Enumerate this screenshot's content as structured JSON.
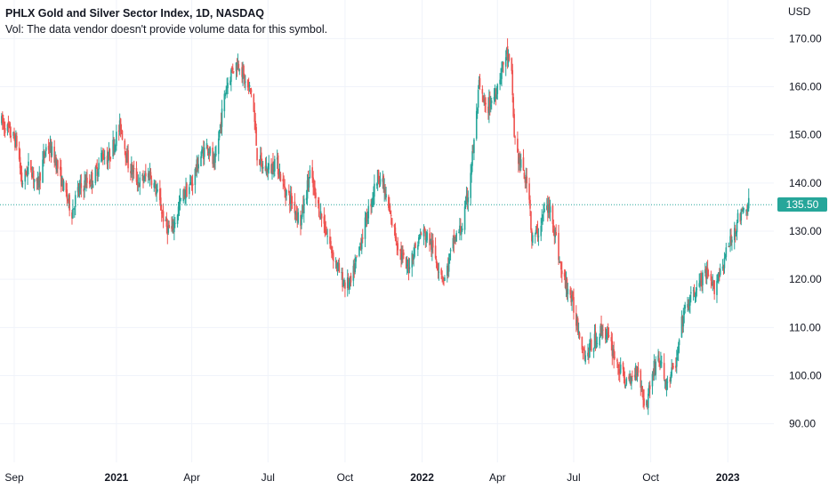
{
  "header": {
    "title": "PHLX Gold and Silver Sector Index, 1D, NASDAQ",
    "volume_note": "Vol: The data vendor doesn't provide volume data for this symbol."
  },
  "currency": "USD",
  "last_price_label": "135.50",
  "colors": {
    "up": "#26a69a",
    "down": "#ef5350",
    "grid": "#f0f3fa",
    "price_line": "#26a69a"
  },
  "chart_data": {
    "type": "candlestick",
    "title": "PHLX Gold and Silver Sector Index, 1D, NASDAQ",
    "ylim": [
      82,
      178
    ],
    "y_ticks": [
      90,
      100,
      110,
      120,
      130,
      140,
      150,
      160,
      170
    ],
    "y_tick_labels": [
      "90.00",
      "100.00",
      "110.00",
      "120.00",
      "130.00",
      "140.00",
      "150.00",
      "160.00",
      "170.00"
    ],
    "x_ticks": [
      {
        "label": "Sep",
        "date": "2020-09-01",
        "major": false
      },
      {
        "label": "2021",
        "date": "2021-01-01",
        "major": true
      },
      {
        "label": "Apr",
        "date": "2021-04-01",
        "major": false
      },
      {
        "label": "Jul",
        "date": "2021-07-01",
        "major": false
      },
      {
        "label": "Oct",
        "date": "2021-10-01",
        "major": false
      },
      {
        "label": "2022",
        "date": "2022-01-01",
        "major": true
      },
      {
        "label": "Apr",
        "date": "2022-04-01",
        "major": false
      },
      {
        "label": "Jul",
        "date": "2022-07-01",
        "major": false
      },
      {
        "label": "Oct",
        "date": "2022-10-01",
        "major": false
      },
      {
        "label": "2023",
        "date": "2023-01-01",
        "major": true
      }
    ],
    "x_range": [
      "2020-08-15",
      "2023-02-25"
    ],
    "last_price": 135.5,
    "price_path": [
      [
        "2020-08-15",
        153
      ],
      [
        "2020-08-25",
        151
      ],
      [
        "2020-09-05",
        148
      ],
      [
        "2020-09-10",
        140
      ],
      [
        "2020-09-20",
        144
      ],
      [
        "2020-09-28",
        139
      ],
      [
        "2020-10-10",
        148
      ],
      [
        "2020-10-20",
        145
      ],
      [
        "2020-10-30",
        139
      ],
      [
        "2020-11-09",
        134
      ],
      [
        "2020-11-15",
        138
      ],
      [
        "2020-11-25",
        140
      ],
      [
        "2020-12-05",
        141
      ],
      [
        "2020-12-15",
        146
      ],
      [
        "2020-12-22",
        145
      ],
      [
        "2021-01-06",
        152
      ],
      [
        "2021-01-15",
        144
      ],
      [
        "2021-01-28",
        140
      ],
      [
        "2021-02-10",
        142
      ],
      [
        "2021-02-20",
        137
      ],
      [
        "2021-03-01",
        131
      ],
      [
        "2021-03-08",
        130
      ],
      [
        "2021-03-20",
        137
      ],
      [
        "2021-04-01",
        140
      ],
      [
        "2021-04-10",
        145
      ],
      [
        "2021-04-20",
        148
      ],
      [
        "2021-04-28",
        143
      ],
      [
        "2021-05-05",
        152
      ],
      [
        "2021-05-12",
        160
      ],
      [
        "2021-05-20",
        164
      ],
      [
        "2021-05-28",
        165
      ],
      [
        "2021-06-05",
        160
      ],
      [
        "2021-06-12",
        159
      ],
      [
        "2021-06-18",
        146
      ],
      [
        "2021-06-25",
        143
      ],
      [
        "2021-07-05",
        143
      ],
      [
        "2021-07-10",
        145
      ],
      [
        "2021-07-20",
        139
      ],
      [
        "2021-07-30",
        136
      ],
      [
        "2021-08-09",
        132
      ],
      [
        "2021-08-20",
        142
      ],
      [
        "2021-08-28",
        136
      ],
      [
        "2021-09-05",
        132
      ],
      [
        "2021-09-15",
        126
      ],
      [
        "2021-09-25",
        121
      ],
      [
        "2021-09-30",
        119
      ],
      [
        "2021-10-08",
        119
      ],
      [
        "2021-10-20",
        128
      ],
      [
        "2021-10-30",
        135
      ],
      [
        "2021-11-10",
        142
      ],
      [
        "2021-11-16",
        139
      ],
      [
        "2021-11-24",
        133
      ],
      [
        "2021-12-05",
        126
      ],
      [
        "2021-12-14",
        122
      ],
      [
        "2021-12-20",
        125
      ],
      [
        "2022-01-01",
        130
      ],
      [
        "2022-01-10",
        128
      ],
      [
        "2022-01-20",
        123
      ],
      [
        "2022-01-28",
        120
      ],
      [
        "2022-02-08",
        128
      ],
      [
        "2022-02-18",
        131
      ],
      [
        "2022-02-25",
        138
      ],
      [
        "2022-03-05",
        150
      ],
      [
        "2022-03-10",
        160
      ],
      [
        "2022-03-18",
        155
      ],
      [
        "2022-03-28",
        158
      ],
      [
        "2022-04-05",
        163
      ],
      [
        "2022-04-12",
        167
      ],
      [
        "2022-04-18",
        162
      ],
      [
        "2022-04-21",
        150
      ],
      [
        "2022-04-26",
        145
      ],
      [
        "2022-05-02",
        142
      ],
      [
        "2022-05-09",
        138
      ],
      [
        "2022-05-12",
        128
      ],
      [
        "2022-05-20",
        130
      ],
      [
        "2022-05-28",
        135
      ],
      [
        "2022-06-05",
        134
      ],
      [
        "2022-06-12",
        126
      ],
      [
        "2022-06-18",
        120
      ],
      [
        "2022-06-25",
        118
      ],
      [
        "2022-07-05",
        111
      ],
      [
        "2022-07-15",
        104
      ],
      [
        "2022-07-25",
        107
      ],
      [
        "2022-08-05",
        110
      ],
      [
        "2022-08-15",
        106
      ],
      [
        "2022-08-25",
        101
      ],
      [
        "2022-09-05",
        98
      ],
      [
        "2022-09-15",
        102
      ],
      [
        "2022-09-25",
        93
      ],
      [
        "2022-10-02",
        100
      ],
      [
        "2022-10-10",
        104
      ],
      [
        "2022-10-20",
        98
      ],
      [
        "2022-11-01",
        103
      ],
      [
        "2022-11-08",
        112
      ],
      [
        "2022-11-15",
        115
      ],
      [
        "2022-11-25",
        118
      ],
      [
        "2022-12-05",
        121
      ],
      [
        "2022-12-15",
        118
      ],
      [
        "2022-12-25",
        123
      ],
      [
        "2023-01-05",
        128
      ],
      [
        "2023-01-12",
        132
      ],
      [
        "2023-01-20",
        134
      ],
      [
        "2023-01-26",
        135.5
      ]
    ]
  }
}
